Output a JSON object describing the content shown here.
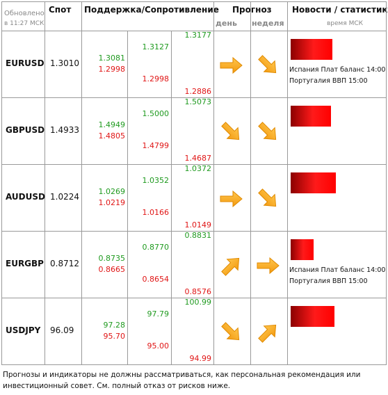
{
  "header": {
    "updated": "Обновлено",
    "time": "в 11:27 МСК",
    "spot": "Спот",
    "levels": "Поддержка/Сопротивление",
    "forecast": "Прогноз",
    "day": "день",
    "week": "неделя",
    "news": "Новости / статистика",
    "news_time": "время МСК"
  },
  "rows": [
    {
      "pair": "EURUSD",
      "spot": "1.3010",
      "levels": [
        [
          "1.3081",
          "1.2998"
        ],
        [
          "1.3127",
          "1.2998"
        ],
        [
          "1.3177",
          "1.2886"
        ]
      ],
      "news": [
        "Испания Плат баланс 14:00",
        "Португалия ВВП 15:00"
      ]
    },
    {
      "pair": "GBPUSD",
      "spot": "1.4933",
      "levels": [
        [
          "1.4949",
          "1.4805"
        ],
        [
          "1.5000",
          "1.4799"
        ],
        [
          "1.5073",
          "1.4687"
        ]
      ],
      "news": []
    },
    {
      "pair": "AUDUSD",
      "spot": "1.0224",
      "levels": [
        [
          "1.0269",
          "1.0219"
        ],
        [
          "1.0352",
          "1.0166"
        ],
        [
          "1.0372",
          "1.0149"
        ]
      ],
      "news": []
    },
    {
      "pair": "EURGBP",
      "spot": "0.8712",
      "levels": [
        [
          "0.8735",
          "0.8665"
        ],
        [
          "0.8770",
          "0.8654"
        ],
        [
          "0.8831",
          "0.8576"
        ]
      ],
      "news": [
        "Испания Плат баланс 14:00",
        "Португалия ВВП 15:00"
      ]
    },
    {
      "pair": "USDJPY",
      "spot": "96.09",
      "levels": [
        [
          "97.28",
          "95.70"
        ],
        [
          "97.79",
          "95.00"
        ],
        [
          "100.99",
          "94.99"
        ]
      ],
      "news": []
    }
  ],
  "disclaimer": "Прогнозы и индикаторы не должны рассматриваться, как персональная рекомендация или инвестиционный совет. См. полный отказ от рисков ниже."
}
